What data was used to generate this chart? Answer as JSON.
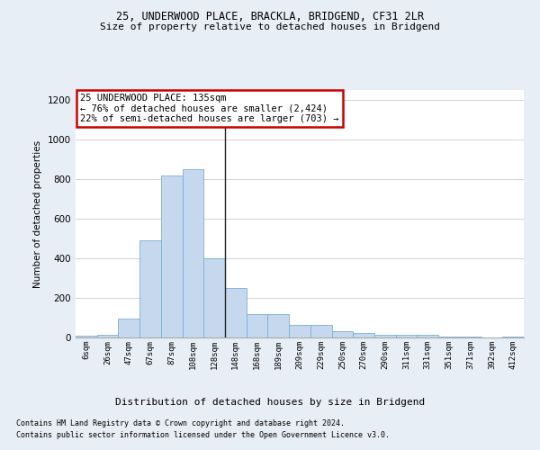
{
  "title_line1": "25, UNDERWOOD PLACE, BRACKLA, BRIDGEND, CF31 2LR",
  "title_line2": "Size of property relative to detached houses in Bridgend",
  "xlabel": "Distribution of detached houses by size in Bridgend",
  "ylabel": "Number of detached properties",
  "bar_color": "#c5d8ed",
  "bar_edge_color": "#7aafd4",
  "vline_x": 6.5,
  "vline_color": "#222222",
  "annotation_text": "25 UNDERWOOD PLACE: 135sqm\n← 76% of detached houses are smaller (2,424)\n22% of semi-detached houses are larger (703) →",
  "annotation_box_color": "#ffffff",
  "annotation_box_edge": "#cc0000",
  "bins": [
    "6sqm",
    "26sqm",
    "47sqm",
    "67sqm",
    "87sqm",
    "108sqm",
    "128sqm",
    "148sqm",
    "168sqm",
    "189sqm",
    "209sqm",
    "229sqm",
    "250sqm",
    "270sqm",
    "290sqm",
    "311sqm",
    "331sqm",
    "351sqm",
    "371sqm",
    "392sqm",
    "412sqm"
  ],
  "values": [
    10,
    15,
    95,
    490,
    820,
    848,
    400,
    250,
    118,
    118,
    65,
    65,
    30,
    22,
    12,
    15,
    15,
    5,
    5,
    0,
    5
  ],
  "ylim": [
    0,
    1250
  ],
  "yticks": [
    0,
    200,
    400,
    600,
    800,
    1000,
    1200
  ],
  "footnote1": "Contains HM Land Registry data © Crown copyright and database right 2024.",
  "footnote2": "Contains public sector information licensed under the Open Government Licence v3.0.",
  "background_color": "#e8eef5",
  "plot_bg_color": "#ffffff"
}
